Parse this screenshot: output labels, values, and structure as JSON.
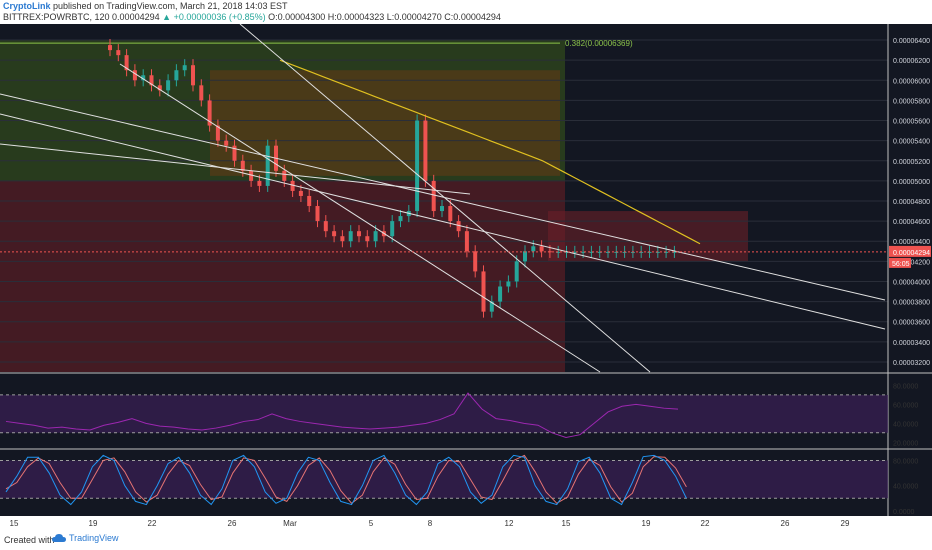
{
  "header": {
    "brand": "CryptoLink",
    "published": "published on TradingView.com, March 21, 2018 14:03 EST",
    "symbol": "BITTREX:POWRBTC, 120",
    "last": "0.00004294",
    "change": "+0.00000036 (+0.85%)",
    "ohlc": "O:0.00004300 H:0.00004323 L:0.00004270 C:0.00004294"
  },
  "footer": {
    "created_with": "Created with",
    "brand": "TradingView"
  },
  "colors": {
    "background": "#131722",
    "up": "#26a69a",
    "down": "#ef5350",
    "rsi": "#9c27b0",
    "stoch_k": "#2196f3",
    "stoch_d": "#e57373",
    "ma": "#e0c020",
    "price_tag": "#ef5350"
  },
  "chart_data": [
    {
      "type": "line",
      "pane": "price",
      "description_x": "date",
      "ylim": [
        3.1e-05,
        6.5e-05
      ],
      "y_ticks": [
        "0.00006400",
        "0.00006200",
        "0.00006000",
        "0.00005800",
        "0.00005600",
        "0.00005400",
        "0.00005200",
        "0.00005000",
        "0.00004800",
        "0.00004600",
        "0.00004400",
        "0.00004200",
        "0.00004000",
        "0.00003800",
        "0.00003600",
        "0.00003400",
        "0.00003200"
      ],
      "x_ticks": [
        "15",
        "19",
        "22",
        "26",
        "Mar",
        "5",
        "8",
        "12",
        "15",
        "19",
        "22",
        "26",
        "29"
      ],
      "fib_label": "0.382(0.00006369)",
      "fib_level": 6.369e-05,
      "price_tag": "0.00004294",
      "countdown_tag": "56:05",
      "series": [
        {
          "kind": "candles",
          "x": [
            0,
            0.5,
            1,
            1.5,
            2,
            2.5,
            3,
            3.5,
            4,
            4.5,
            5,
            5.5,
            6,
            6.5,
            7,
            7.5,
            8,
            8.5,
            9,
            9.5,
            10,
            10.5,
            11,
            11.5,
            12,
            12.5,
            13,
            13.5,
            14,
            14.5,
            15,
            15.5,
            16,
            16.5,
            17,
            17.5,
            18,
            18.5,
            19,
            19.5,
            20,
            20.5,
            21,
            21.5,
            22,
            22.5,
            23,
            23.5,
            24,
            24.5,
            25,
            25.5,
            26,
            26.5,
            27,
            27.5,
            28,
            28.5,
            29,
            29.5,
            30,
            30.5,
            31,
            31.5,
            32,
            32.5,
            33,
            33.5,
            34
          ],
          "close": [
            6.3,
            6.25,
            6.1,
            6.0,
            6.05,
            5.95,
            5.9,
            6.0,
            6.1,
            6.15,
            5.95,
            5.8,
            5.55,
            5.4,
            5.35,
            5.2,
            5.1,
            5.0,
            4.95,
            5.35,
            5.1,
            5.0,
            4.9,
            4.85,
            4.75,
            4.6,
            4.5,
            4.45,
            4.4,
            4.5,
            4.45,
            4.4,
            4.5,
            4.45,
            4.6,
            4.65,
            4.7,
            5.6,
            5.0,
            4.7,
            4.75,
            4.6,
            4.5,
            4.3,
            4.1,
            3.7,
            3.8,
            3.95,
            4.0,
            4.2,
            4.3,
            4.35,
            4.3,
            4.294,
            4.294,
            4.294,
            4.294,
            4.294,
            4.294,
            4.294,
            4.294,
            4.294,
            4.294,
            4.294,
            4.294,
            4.294,
            4.294,
            4.294,
            4.294
          ]
        },
        {
          "kind": "ma",
          "name": "",
          "note": "long moving average, yellow"
        }
      ]
    },
    {
      "type": "line",
      "pane": "rsi",
      "ylim": [
        15,
        90
      ],
      "y_ticks": [
        "80.0000",
        "60.0000",
        "40.0000",
        "20.0000"
      ],
      "bands": [
        70,
        30
      ],
      "values": [
        42,
        40,
        38,
        35,
        36,
        34,
        33,
        38,
        41,
        45,
        40,
        37,
        36,
        34,
        33,
        35,
        38,
        42,
        44,
        50,
        45,
        42,
        40,
        38,
        36,
        35,
        34,
        35,
        36,
        38,
        40,
        44,
        50,
        72,
        55,
        45,
        43,
        40,
        38,
        30,
        25,
        28,
        40,
        52,
        58,
        60,
        58,
        56,
        55
      ]
    },
    {
      "type": "line",
      "pane": "stoch",
      "ylim": [
        -5,
        95
      ],
      "y_ticks": [
        "80.0000",
        "40.0000",
        "0.0000"
      ],
      "bands": [
        80,
        20
      ],
      "series": [
        {
          "name": "",
          "values": [
            30,
            55,
            85,
            85,
            60,
            25,
            10,
            30,
            70,
            88,
            80,
            40,
            15,
            10,
            40,
            75,
            85,
            60,
            25,
            10,
            35,
            80,
            88,
            70,
            30,
            12,
            20,
            60,
            85,
            80,
            45,
            15,
            10,
            40,
            80,
            88,
            60,
            25,
            10,
            30,
            75,
            85,
            70,
            30,
            12,
            25,
            70,
            88,
            85,
            40,
            15,
            10,
            35,
            78,
            85,
            60,
            20,
            10,
            45,
            86,
            88,
            80,
            55,
            20
          ]
        },
        {
          "name": "",
          "values": [
            35,
            45,
            70,
            84,
            75,
            45,
            20,
            20,
            50,
            80,
            84,
            62,
            30,
            14,
            25,
            58,
            80,
            72,
            42,
            18,
            22,
            60,
            84,
            80,
            52,
            22,
            15,
            40,
            72,
            84,
            64,
            32,
            12,
            25,
            62,
            84,
            74,
            42,
            18,
            20,
            55,
            80,
            78,
            50,
            22,
            18,
            48,
            80,
            88,
            62,
            30,
            12,
            22,
            58,
            82,
            72,
            38,
            14,
            28,
            70,
            86,
            85,
            68,
            38
          ]
        }
      ]
    }
  ]
}
